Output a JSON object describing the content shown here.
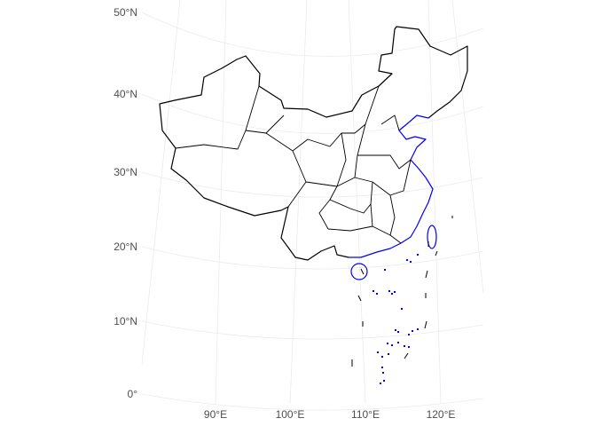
{
  "map": {
    "projection": "conic",
    "region": "China",
    "lat_labels": [
      "0°",
      "10°N",
      "20°N",
      "30°N",
      "40°N",
      "50°N"
    ],
    "lon_labels": [
      "90°E",
      "100°E",
      "110°E",
      "120°E"
    ],
    "colors": {
      "background": "#ffffff",
      "graticule": "#ebebeb",
      "border": "#000000",
      "coastline": "#0000ff",
      "tick_text": "#4d4d4d"
    }
  }
}
